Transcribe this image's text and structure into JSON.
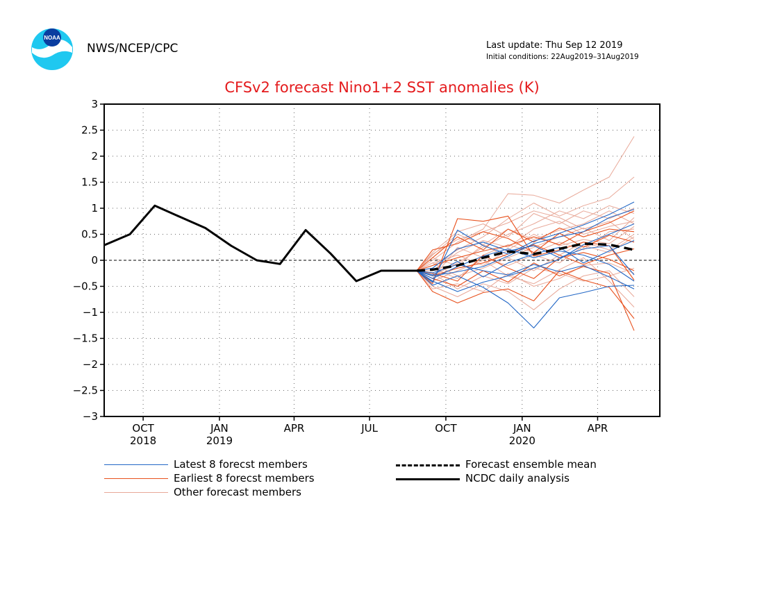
{
  "header": {
    "agency": "NWS/NCEP/CPC",
    "last_update": "Last update: Thu Sep 12 2019",
    "initial_conditions": "Initial conditions: 22Aug2019–31Aug2019",
    "logo_text": "NOAA"
  },
  "legend": {
    "latest": "Latest 8 forecst members",
    "earliest": "Earliest 8 forecst members",
    "other": "Other forecast members",
    "mean": "Forecast ensemble mean",
    "analysis": "NCDC daily analysis"
  },
  "colors": {
    "latest": "#2166c5",
    "earliest": "#e8501c",
    "other": "#e8a898",
    "title": "#e41a1c"
  },
  "chart_data": {
    "type": "line",
    "title": "CFSv2 forecast Nino1+2 SST anomalies (K)",
    "ylabel": "",
    "xlabel": "",
    "ylim": [
      -3,
      3
    ],
    "yticks": [
      -3,
      -2.5,
      -2,
      -1.5,
      -1,
      -0.5,
      0,
      0.5,
      1,
      1.5,
      2,
      2.5,
      3
    ],
    "ytick_labels": [
      "−3",
      "−2.5",
      "−2",
      "−1.5",
      "−1",
      "−0.5",
      "0",
      "0.5",
      "1",
      "1.5",
      "2",
      "2.5",
      "3"
    ],
    "xlim": [
      "2018-08-15",
      "2020-06-15"
    ],
    "xticks": [
      {
        "date": "2018-10-01",
        "label": "OCT",
        "year": "2018"
      },
      {
        "date": "2019-01-01",
        "label": "JAN",
        "year": "2019"
      },
      {
        "date": "2019-04-01",
        "label": "APR",
        "year": ""
      },
      {
        "date": "2019-07-01",
        "label": "JUL",
        "year": ""
      },
      {
        "date": "2019-10-01",
        "label": "OCT",
        "year": ""
      },
      {
        "date": "2020-01-01",
        "label": "JAN",
        "year": "2020"
      },
      {
        "date": "2020-04-01",
        "label": "APR",
        "year": ""
      }
    ],
    "grid": true,
    "forecast_dates": [
      "2019-08-27",
      "2019-09-15",
      "2019-10-15",
      "2019-11-15",
      "2019-12-15",
      "2020-01-15",
      "2020-02-15",
      "2020-03-15",
      "2020-04-15",
      "2020-05-15"
    ],
    "series": [
      {
        "name": "NCDC daily analysis",
        "x": [
          "2018-08-15",
          "2018-09-15",
          "2018-10-15",
          "2018-11-15",
          "2018-12-15",
          "2019-01-15",
          "2019-02-15",
          "2019-03-15",
          "2019-04-15",
          "2019-05-15",
          "2019-06-15",
          "2019-07-15",
          "2019-08-27"
        ],
        "y": [
          0.29,
          0.5,
          1.05,
          0.83,
          0.62,
          0.28,
          0.0,
          -0.07,
          0.58,
          0.13,
          -0.4,
          -0.2,
          -0.2
        ]
      },
      {
        "name": "Forecast ensemble mean",
        "x": [
          "2019-08-27",
          "2019-09-15",
          "2019-10-15",
          "2019-11-15",
          "2019-12-15",
          "2020-01-15",
          "2020-02-15",
          "2020-03-15",
          "2020-04-15",
          "2020-05-15"
        ],
        "y": [
          -0.2,
          -0.18,
          -0.1,
          0.05,
          0.17,
          0.12,
          0.22,
          0.32,
          0.3,
          0.2
        ]
      }
    ],
    "latest_members": [
      [
        -0.2,
        -0.42,
        0.58,
        0.28,
        0.12,
        0.37,
        0.52,
        0.68,
        0.88,
        1.12
      ],
      [
        -0.2,
        -0.48,
        -0.3,
        -0.52,
        -0.82,
        -1.3,
        -0.72,
        -0.62,
        -0.5,
        -0.48
      ],
      [
        -0.2,
        -0.35,
        -0.12,
        0.08,
        0.22,
        0.05,
        0.18,
        0.1,
        -0.08,
        -0.4
      ],
      [
        -0.2,
        -0.3,
        -0.22,
        -0.12,
        0.08,
        0.32,
        0.45,
        0.55,
        0.82,
        0.98
      ],
      [
        -0.2,
        -0.24,
        -0.08,
        -0.2,
        -0.28,
        -0.08,
        -0.22,
        -0.1,
        -0.32,
        -0.55
      ],
      [
        -0.2,
        -0.4,
        -0.6,
        -0.42,
        -0.3,
        -0.15,
        0.02,
        0.3,
        0.5,
        0.7
      ],
      [
        -0.2,
        -0.15,
        0.22,
        0.35,
        0.18,
        0.28,
        0.05,
        0.22,
        0.28,
        -0.28
      ],
      [
        -0.2,
        -0.28,
        -0.02,
        -0.32,
        -0.05,
        0.12,
        0.25,
        -0.05,
        0.18,
        0.38
      ]
    ],
    "earliest_members": [
      [
        -0.2,
        -0.45,
        0.8,
        0.75,
        0.85,
        0.08,
        0.2,
        0.35,
        0.28,
        -0.38
      ],
      [
        -0.2,
        -0.6,
        -0.82,
        -0.62,
        -0.55,
        -0.78,
        -0.2,
        -0.38,
        -0.52,
        -1.12
      ],
      [
        -0.2,
        -0.1,
        0.05,
        0.18,
        0.28,
        0.45,
        0.3,
        0.55,
        0.72,
        0.95
      ],
      [
        -0.2,
        -0.35,
        -0.5,
        -0.2,
        -0.42,
        -0.05,
        -0.3,
        -0.12,
        -0.25,
        -1.35
      ],
      [
        -0.2,
        0.2,
        0.32,
        0.55,
        0.42,
        0.15,
        0.52,
        0.25,
        0.48,
        0.35
      ],
      [
        -0.2,
        -0.3,
        -0.15,
        -0.05,
        0.12,
        0.3,
        0.1,
        -0.08,
        0.1,
        0.22
      ],
      [
        -0.2,
        -0.25,
        -0.4,
        0.1,
        -0.15,
        -0.35,
        0.05,
        0.15,
        0.02,
        -0.2
      ],
      [
        -0.2,
        0.05,
        0.45,
        0.2,
        0.6,
        0.35,
        0.62,
        0.45,
        0.6,
        0.55
      ]
    ],
    "other_members": [
      [
        -0.2,
        0.0,
        0.35,
        0.6,
        1.28,
        1.25,
        1.1,
        1.35,
        1.6,
        2.38
      ],
      [
        -0.2,
        -0.1,
        0.2,
        0.45,
        0.8,
        1.1,
        0.85,
        1.05,
        1.2,
        1.6
      ],
      [
        -0.2,
        -0.3,
        -0.05,
        0.25,
        0.5,
        0.7,
        0.95,
        0.8,
        1.05,
        0.9
      ],
      [
        -0.2,
        -0.5,
        -0.7,
        -0.45,
        -0.6,
        -0.95,
        -0.55,
        -0.3,
        -0.2,
        -0.7
      ],
      [
        -0.2,
        -0.2,
        0.15,
        0.38,
        0.25,
        0.6,
        0.75,
        0.5,
        0.65,
        0.75
      ],
      [
        -0.2,
        -0.05,
        -0.3,
        -0.15,
        0.05,
        -0.2,
        0.1,
        0.35,
        0.2,
        0.5
      ],
      [
        -0.2,
        0.1,
        0.5,
        0.3,
        0.05,
        0.25,
        0.45,
        0.62,
        0.38,
        0.82
      ],
      [
        -0.2,
        -0.4,
        -0.2,
        0.0,
        -0.3,
        -0.45,
        -0.18,
        0.05,
        -0.4,
        -0.9
      ],
      [
        -0.2,
        0.15,
        0.55,
        0.7,
        0.45,
        0.9,
        0.7,
        0.95,
        0.8,
        1.0
      ],
      [
        -0.2,
        -0.15,
        -0.35,
        0.1,
        0.3,
        0.15,
        0.35,
        0.2,
        0.55,
        0.6
      ],
      [
        -0.2,
        -0.55,
        -0.45,
        -0.6,
        -0.25,
        -0.5,
        -0.35,
        -0.1,
        -0.05,
        -0.25
      ],
      [
        -0.2,
        -0.05,
        0.1,
        -0.1,
        0.2,
        0.5,
        0.28,
        0.4,
        0.32,
        0.65
      ],
      [
        -0.2,
        0.05,
        -0.1,
        0.3,
        0.6,
        0.4,
        0.58,
        0.7,
        0.95,
        0.7
      ],
      [
        -0.2,
        -0.35,
        0.25,
        0.05,
        -0.1,
        0.1,
        -0.05,
        0.28,
        0.15,
        0.45
      ],
      [
        -0.2,
        -0.25,
        -0.55,
        -0.3,
        -0.45,
        -0.15,
        -0.25,
        -0.4,
        -0.3,
        -0.15
      ],
      [
        -0.2,
        0.12,
        0.4,
        0.55,
        0.72,
        0.95,
        0.82,
        0.6,
        0.75,
        0.4
      ]
    ]
  }
}
